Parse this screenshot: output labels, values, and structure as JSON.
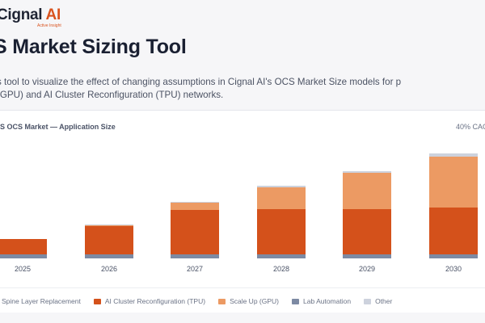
{
  "brand": {
    "name_main": "Cignal",
    "name_ai": "AI",
    "tagline": "Active Insight"
  },
  "header": {
    "title": "S Market Sizing Tool",
    "description": "s tool to visualize the effect of changing assumptions in Cignal AI's OCS Market Size models for p (GPU) and AI Cluster Reconfiguration (TPU) networks."
  },
  "chart_header": {
    "title": "S OCS Market — Application Size",
    "cagr": "40% CAG"
  },
  "colors": {
    "spine": "#7d8aa3",
    "ai_cluster": "#d4511b",
    "scale_up": "#ec9a63",
    "lab": "#7d8aa3",
    "other": "#cdd2dd"
  },
  "legend": [
    {
      "label": "Spine Layer Replacement",
      "color": "#7d8aa3"
    },
    {
      "label": "AI Cluster Reconfiguration (TPU)",
      "color": "#d4511b"
    },
    {
      "label": "Scale Up (GPU)",
      "color": "#ec9a63"
    },
    {
      "label": "Lab Automation",
      "color": "#7d8aa3"
    },
    {
      "label": "Other",
      "color": "#cdd2dd"
    }
  ],
  "chart_data": {
    "type": "bar",
    "stacked": true,
    "categories": [
      "2025",
      "2026",
      "2027",
      "2028",
      "2029",
      "2030"
    ],
    "series": [
      {
        "name": "Lab Automation",
        "color": "#7d8aa3",
        "values": [
          5,
          5,
          5,
          5,
          5,
          5
        ]
      },
      {
        "name": "AI Cluster Reconfiguration (TPU)",
        "color": "#d4511b",
        "values": [
          19,
          35,
          55,
          56,
          56,
          58
        ]
      },
      {
        "name": "Scale Up (GPU)",
        "color": "#ec9a63",
        "values": [
          0,
          1,
          9,
          27,
          45,
          63
        ]
      },
      {
        "name": "Other",
        "color": "#cdd2dd",
        "values": [
          0,
          1,
          1,
          2,
          2,
          4
        ]
      }
    ],
    "ylim": [
      0,
      130
    ],
    "grid": false,
    "legend_position": "bottom"
  }
}
